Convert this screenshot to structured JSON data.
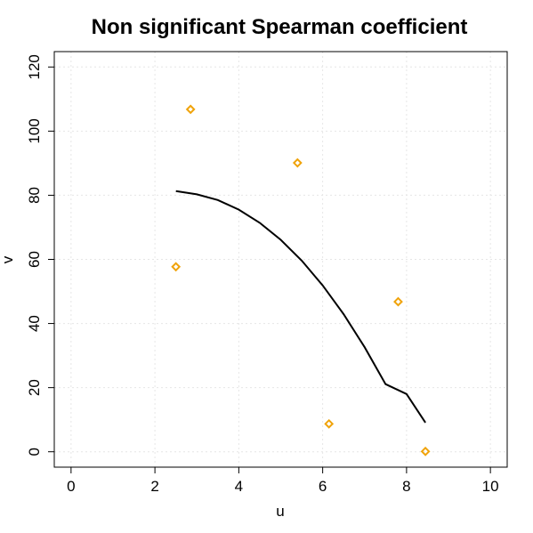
{
  "chart_data": {
    "type": "scatter",
    "title": "Non significant Spearman coefficient",
    "xlabel": "u",
    "ylabel": "v",
    "xlim": [
      -0.4,
      10.4
    ],
    "ylim": [
      -4.8,
      124.8
    ],
    "x_ticks": [
      0,
      2,
      4,
      6,
      8,
      10
    ],
    "y_ticks": [
      0,
      20,
      40,
      60,
      80,
      100,
      120
    ],
    "grid": true,
    "points": {
      "marker": "diamond",
      "color": "#f0a30a",
      "x": [
        2.5,
        2.85,
        5.4,
        6.15,
        7.8,
        8.45
      ],
      "y": [
        57.7,
        106.8,
        90.1,
        8.7,
        46.8,
        0.1
      ]
    },
    "fit_curve": {
      "type": "line",
      "color": "#000000",
      "x": [
        2.5,
        3.0,
        3.5,
        4.0,
        4.5,
        5.0,
        5.5,
        6.0,
        6.5,
        7.0,
        7.5,
        8.0,
        8.45
      ],
      "y": [
        81.3,
        80.3,
        78.5,
        75.5,
        71.4,
        66.1,
        59.6,
        51.9,
        42.9,
        32.6,
        21.1,
        18.0,
        9.1
      ]
    }
  }
}
